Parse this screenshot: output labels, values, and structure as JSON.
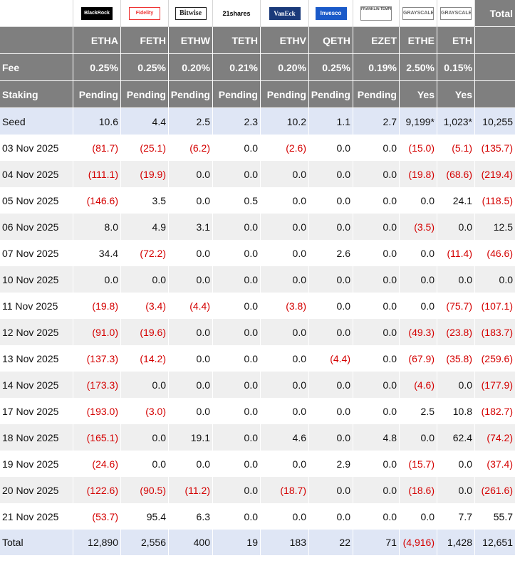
{
  "colors": {
    "header_bg": "#7f7f7f",
    "seed_bg": "#dfe6f5",
    "alt_row_bg": "#efefef",
    "negative": "#d40000"
  },
  "logos": [
    "BlackRock",
    "Fidelity",
    "Bitwise",
    "21shares",
    "VanEck",
    "Invesco",
    "FRANKLIN TEMPLETON",
    "GRAYSCALE",
    "GRAYSCALE"
  ],
  "total_header": "Total",
  "tickers": [
    "ETHA",
    "FETH",
    "ETHW",
    "TETH",
    "ETHV",
    "QETH",
    "EZET",
    "ETHE",
    "ETH"
  ],
  "fee": {
    "label": "Fee",
    "values": [
      "0.25%",
      "0.25%",
      "0.20%",
      "0.21%",
      "0.20%",
      "0.25%",
      "0.19%",
      "2.50%",
      "0.15%"
    ]
  },
  "staking": {
    "label": "Staking",
    "values": [
      "Pending",
      "Pending",
      "Pending",
      "Pending",
      "Pending",
      "Pending",
      "Pending",
      "Yes",
      "Yes"
    ]
  },
  "seed": {
    "label": "Seed",
    "values": [
      "10.6",
      "4.4",
      "2.5",
      "2.3",
      "10.2",
      "1.1",
      "2.7",
      "9,199*",
      "1,023*",
      "10,255"
    ]
  },
  "rows": [
    {
      "date": "03 Nov 2025",
      "values": [
        "(81.7)",
        "(25.1)",
        "(6.2)",
        "0.0",
        "(2.6)",
        "0.0",
        "0.0",
        "(15.0)",
        "(5.1)",
        "(135.7)"
      ]
    },
    {
      "date": "04 Nov 2025",
      "values": [
        "(111.1)",
        "(19.9)",
        "0.0",
        "0.0",
        "0.0",
        "0.0",
        "0.0",
        "(19.8)",
        "(68.6)",
        "(219.4)"
      ]
    },
    {
      "date": "05 Nov 2025",
      "values": [
        "(146.6)",
        "3.5",
        "0.0",
        "0.5",
        "0.0",
        "0.0",
        "0.0",
        "0.0",
        "24.1",
        "(118.5)"
      ]
    },
    {
      "date": "06 Nov 2025",
      "values": [
        "8.0",
        "4.9",
        "3.1",
        "0.0",
        "0.0",
        "0.0",
        "0.0",
        "(3.5)",
        "0.0",
        "12.5"
      ]
    },
    {
      "date": "07 Nov 2025",
      "values": [
        "34.4",
        "(72.2)",
        "0.0",
        "0.0",
        "0.0",
        "2.6",
        "0.0",
        "0.0",
        "(11.4)",
        "(46.6)"
      ]
    },
    {
      "date": "10 Nov 2025",
      "values": [
        "0.0",
        "0.0",
        "0.0",
        "0.0",
        "0.0",
        "0.0",
        "0.0",
        "0.0",
        "0.0",
        "0.0"
      ]
    },
    {
      "date": "11 Nov 2025",
      "values": [
        "(19.8)",
        "(3.4)",
        "(4.4)",
        "0.0",
        "(3.8)",
        "0.0",
        "0.0",
        "0.0",
        "(75.7)",
        "(107.1)"
      ]
    },
    {
      "date": "12 Nov 2025",
      "values": [
        "(91.0)",
        "(19.6)",
        "0.0",
        "0.0",
        "0.0",
        "0.0",
        "0.0",
        "(49.3)",
        "(23.8)",
        "(183.7)"
      ]
    },
    {
      "date": "13 Nov 2025",
      "values": [
        "(137.3)",
        "(14.2)",
        "0.0",
        "0.0",
        "0.0",
        "(4.4)",
        "0.0",
        "(67.9)",
        "(35.8)",
        "(259.6)"
      ]
    },
    {
      "date": "14 Nov 2025",
      "values": [
        "(173.3)",
        "0.0",
        "0.0",
        "0.0",
        "0.0",
        "0.0",
        "0.0",
        "(4.6)",
        "0.0",
        "(177.9)"
      ]
    },
    {
      "date": "17 Nov 2025",
      "values": [
        "(193.0)",
        "(3.0)",
        "0.0",
        "0.0",
        "0.0",
        "0.0",
        "0.0",
        "2.5",
        "10.8",
        "(182.7)"
      ]
    },
    {
      "date": "18 Nov 2025",
      "values": [
        "(165.1)",
        "0.0",
        "19.1",
        "0.0",
        "4.6",
        "0.0",
        "4.8",
        "0.0",
        "62.4",
        "(74.2)"
      ]
    },
    {
      "date": "19 Nov 2025",
      "values": [
        "(24.6)",
        "0.0",
        "0.0",
        "0.0",
        "0.0",
        "2.9",
        "0.0",
        "(15.7)",
        "0.0",
        "(37.4)"
      ]
    },
    {
      "date": "20 Nov 2025",
      "values": [
        "(122.6)",
        "(90.5)",
        "(11.2)",
        "0.0",
        "(18.7)",
        "0.0",
        "0.0",
        "(18.6)",
        "0.0",
        "(261.6)"
      ]
    },
    {
      "date": "21 Nov 2025",
      "values": [
        "(53.7)",
        "95.4",
        "6.3",
        "0.0",
        "0.0",
        "0.0",
        "0.0",
        "0.0",
        "7.7",
        "55.7"
      ]
    }
  ],
  "total": {
    "label": "Total",
    "values": [
      "12,890",
      "2,556",
      "400",
      "19",
      "183",
      "22",
      "71",
      "(4,916)",
      "1,428",
      "12,651"
    ]
  }
}
